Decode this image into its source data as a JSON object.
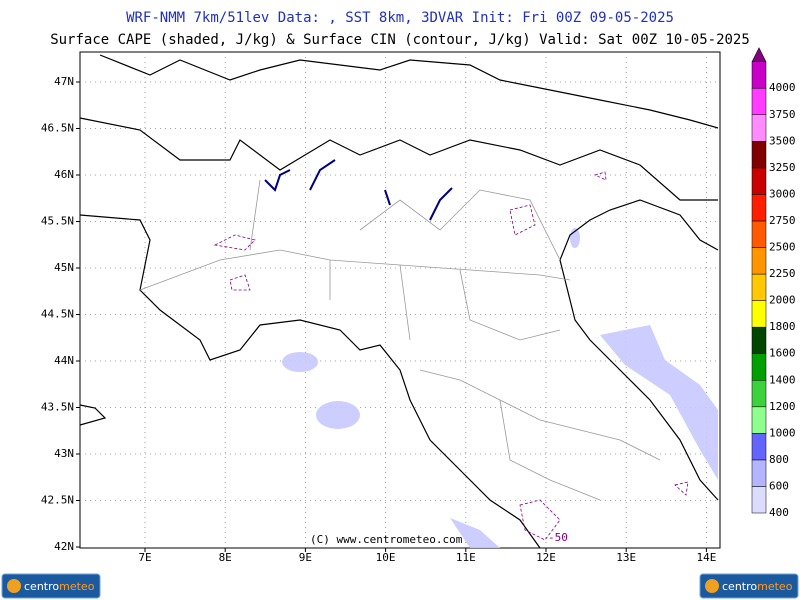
{
  "header": {
    "line1": "WRF-NMM 7km/51lev  Data: , SST 8km, 3DVAR  Init: Fri 00Z 09-05-2025",
    "line2": "Surface CAPE (shaded, J/kg) & Surface CIN (contour, J/kg)  Valid: Sat 00Z 10-05-2025"
  },
  "map": {
    "lat_labels": [
      "42N",
      "42.5N",
      "43N",
      "43.5N",
      "44N",
      "44.5N",
      "45N",
      "45.5N",
      "46N",
      "46.5N",
      "47N"
    ],
    "lon_labels": [
      "7E",
      "8E",
      "9E",
      "10E",
      "11E",
      "12E",
      "13E",
      "14E"
    ],
    "copyright": "(C) www.centrometeo.com",
    "contour_label": "-50"
  },
  "colorbar": {
    "levels": [
      400,
      600,
      800,
      1000,
      1200,
      1400,
      1600,
      1800,
      2000,
      2250,
      2500,
      2750,
      3000,
      3250,
      3500,
      3750,
      4000
    ],
    "colors": [
      "#dcdcff",
      "#b4b4ff",
      "#6464ff",
      "#8cff8c",
      "#3cd23c",
      "#00a000",
      "#004600",
      "#ffff00",
      "#ffc800",
      "#ff9600",
      "#ff5a00",
      "#ff1e00",
      "#c80000",
      "#800000",
      "#ff8cff",
      "#ff3cff",
      "#c800c8"
    ],
    "top_color": "#800080"
  },
  "footer": {
    "logo_left": {
      "part1": "centro",
      "part2": "meteo"
    },
    "logo_right": {
      "part1": "centro",
      "part2": "meteo"
    }
  }
}
